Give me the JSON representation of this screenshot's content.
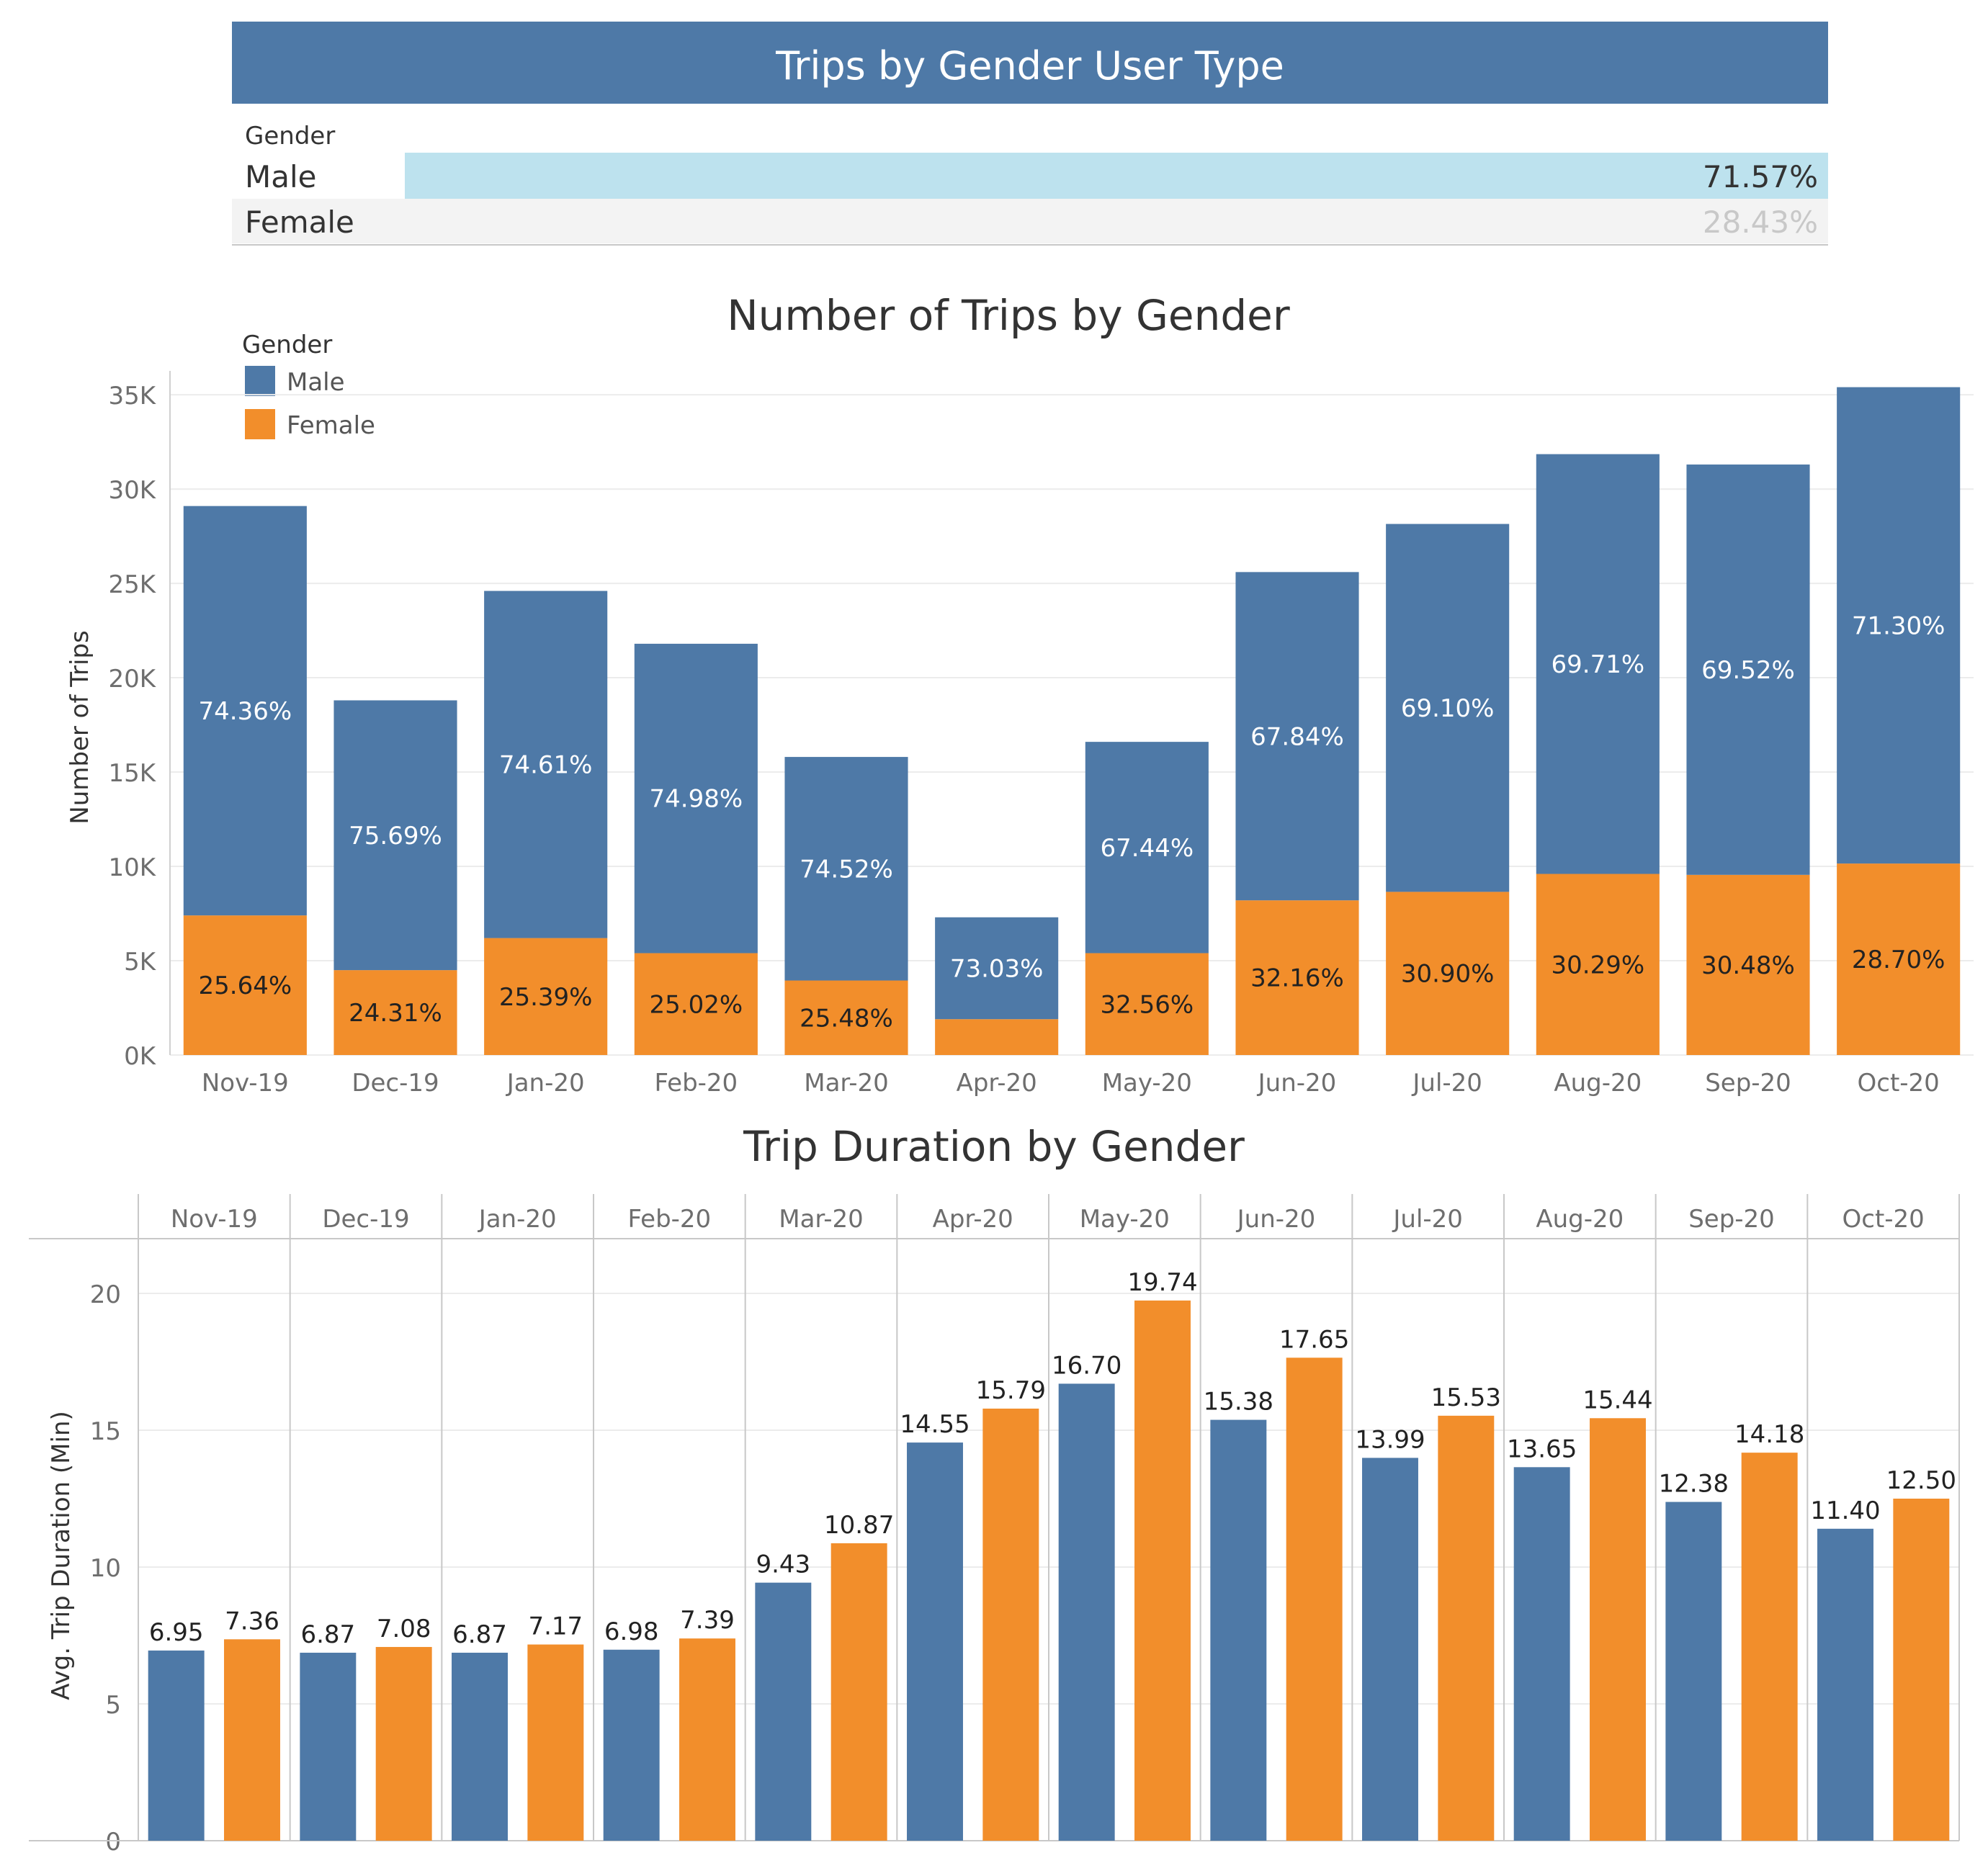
{
  "colors": {
    "male": "#4e79a7",
    "female": "#f28e2b",
    "banner": "#4e79a7",
    "banner_text": "#ffffff",
    "highlight_bar": "#bde2ee",
    "muted_row": "#f3f3f3",
    "muted_text": "#c8c8c8",
    "grid": "#ececec",
    "axis_text": "#6e6e6e",
    "dark_text": "#333333"
  },
  "banner": {
    "title": "Trips by Gender User Type"
  },
  "share_table": {
    "header": "Gender",
    "rows": [
      {
        "label": "Male",
        "value_text": "71.57%",
        "share": 0.7157,
        "highlighted": true
      },
      {
        "label": "Female",
        "value_text": "28.43%",
        "share": 0.2843,
        "highlighted": false
      }
    ]
  },
  "chart_data": [
    {
      "type": "bar",
      "stacked": true,
      "title": "Number of Trips by Gender",
      "xlabel": "",
      "ylabel": "Number of Trips",
      "ylim": [
        0,
        35500
      ],
      "yticks": [
        0,
        5000,
        10000,
        15000,
        20000,
        25000,
        30000,
        35000
      ],
      "ytick_labels": [
        "0K",
        "5K",
        "10K",
        "15K",
        "20K",
        "25K",
        "30K",
        "35K"
      ],
      "grid": true,
      "legend": {
        "title": "Gender",
        "position": "top-left",
        "entries": [
          "Male",
          "Female"
        ]
      },
      "categories": [
        "Nov-19",
        "Dec-19",
        "Jan-20",
        "Feb-20",
        "Mar-20",
        "Apr-20",
        "May-20",
        "Jun-20",
        "Jul-20",
        "Aug-20",
        "Sep-20",
        "Oct-20"
      ],
      "series": [
        {
          "name": "Female",
          "values": [
            7400,
            4500,
            6200,
            5400,
            3950,
            1900,
            5400,
            8200,
            8650,
            9600,
            9550,
            10150
          ],
          "labels": [
            "25.64%",
            "24.31%",
            "25.39%",
            "25.02%",
            "25.48%",
            "",
            "32.56%",
            "32.16%",
            "30.90%",
            "30.29%",
            "30.48%",
            "28.70%"
          ]
        },
        {
          "name": "Male",
          "values": [
            21700,
            14300,
            18400,
            16400,
            11850,
            5400,
            11200,
            17400,
            19500,
            22250,
            21750,
            25250
          ],
          "labels": [
            "74.36%",
            "75.69%",
            "74.61%",
            "74.98%",
            "74.52%",
            "73.03%",
            "67.44%",
            "67.84%",
            "69.10%",
            "69.71%",
            "69.52%",
            "71.30%"
          ]
        }
      ]
    },
    {
      "type": "bar",
      "grouped": true,
      "title": "Trip Duration by Gender",
      "xlabel": "",
      "ylabel": "Avg. Trip Duration (Min)",
      "ylim": [
        0,
        22
      ],
      "yticks": [
        0,
        5,
        10,
        15,
        20
      ],
      "ytick_labels": [
        "0",
        "5",
        "10",
        "15",
        "20"
      ],
      "grid": true,
      "categories": [
        "Nov-19",
        "Dec-19",
        "Jan-20",
        "Feb-20",
        "Mar-20",
        "Apr-20",
        "May-20",
        "Jun-20",
        "Jul-20",
        "Aug-20",
        "Sep-20",
        "Oct-20"
      ],
      "series": [
        {
          "name": "Male",
          "values": [
            6.95,
            6.87,
            6.87,
            6.98,
            9.43,
            14.55,
            16.7,
            15.38,
            13.99,
            13.65,
            12.38,
            11.4
          ],
          "labels": [
            "6.95",
            "6.87",
            "6.87",
            "6.98",
            "9.43",
            "14.55",
            "16.70",
            "15.38",
            "13.99",
            "13.65",
            "12.38",
            "11.40"
          ]
        },
        {
          "name": "Female",
          "values": [
            7.36,
            7.08,
            7.17,
            7.39,
            10.87,
            15.79,
            19.74,
            17.65,
            15.53,
            15.44,
            14.18,
            12.5
          ],
          "labels": [
            "7.36",
            "7.08",
            "7.17",
            "7.39",
            "10.87",
            "15.79",
            "19.74",
            "17.65",
            "15.53",
            "15.44",
            "14.18",
            "12.50"
          ]
        }
      ]
    }
  ]
}
